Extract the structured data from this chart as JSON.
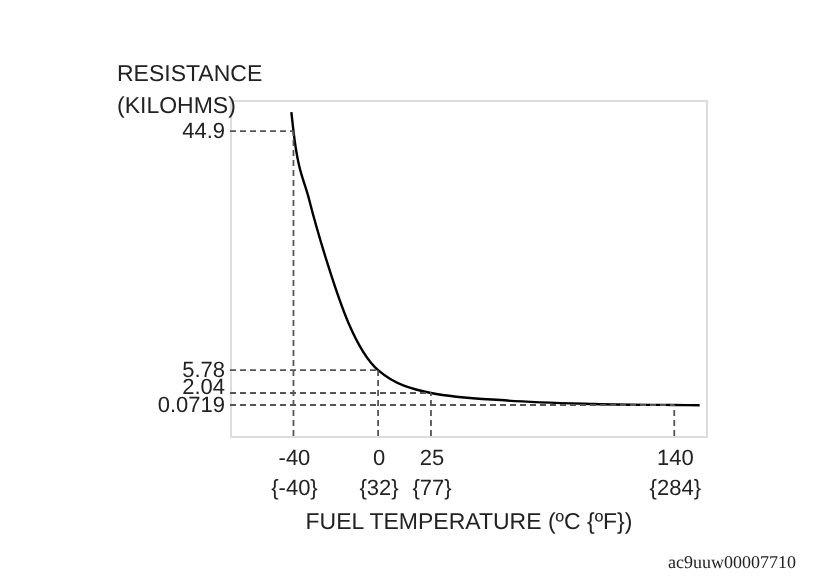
{
  "chart_data": {
    "type": "line",
    "xlabel": "FUEL TEMPERATURE (ºC {ºF})",
    "ylabel": "RESISTANCE\n(KILOHMS)",
    "x": [
      -41,
      -40,
      -32.6,
      -23.7,
      -14,
      0,
      25,
      61,
      102,
      140,
      152
    ],
    "series": [
      {
        "color": "#000000",
        "values": [
          48,
          44.9,
          33.7,
          23,
          13.5,
          5.78,
          2.04,
          0.8,
          0.25,
          0.0719,
          0.04
        ]
      }
    ],
    "xlim": [
      -70,
      155
    ],
    "xticks": [
      -40,
      0,
      25,
      140
    ],
    "x2lim": [
      -94,
      311
    ],
    "x2ticks": [
      {
        "value": -40,
        "label": "{-40}"
      },
      {
        "value": 32,
        "label": "{32}"
      },
      {
        "value": 77,
        "label": "{77}"
      },
      {
        "value": 284,
        "label": "{284}"
      }
    ],
    "ylim": [
      -5,
      50
    ],
    "yticks": [
      44.9,
      5.78,
      2.04,
      0.0719
    ],
    "ref_lines": [
      {
        "axis": "x",
        "value": -40,
        "color": "#555555",
        "line_style": "dashed"
      },
      {
        "axis": "x",
        "value": 0,
        "color": "#555555",
        "line_style": "dashed"
      },
      {
        "axis": "x",
        "value": 25,
        "color": "#555555",
        "line_style": "dashed"
      },
      {
        "axis": "x",
        "value": 140,
        "color": "#555555",
        "line_style": "dashed"
      },
      {
        "axis": "y",
        "value": 44.9,
        "color": "#555555",
        "line_style": "dashed"
      },
      {
        "axis": "y",
        "value": 5.78,
        "color": "#555555",
        "line_style": "dashed"
      },
      {
        "axis": "y",
        "value": 2.04,
        "color": "#555555",
        "line_style": "dashed"
      },
      {
        "axis": "y",
        "value": 0.0719,
        "color": "#555555",
        "line_style": "dashed"
      }
    ],
    "annotations": [
      "ac9uuw00007710"
    ],
    "grid": false,
    "marker": "none",
    "line_style": "solid"
  }
}
